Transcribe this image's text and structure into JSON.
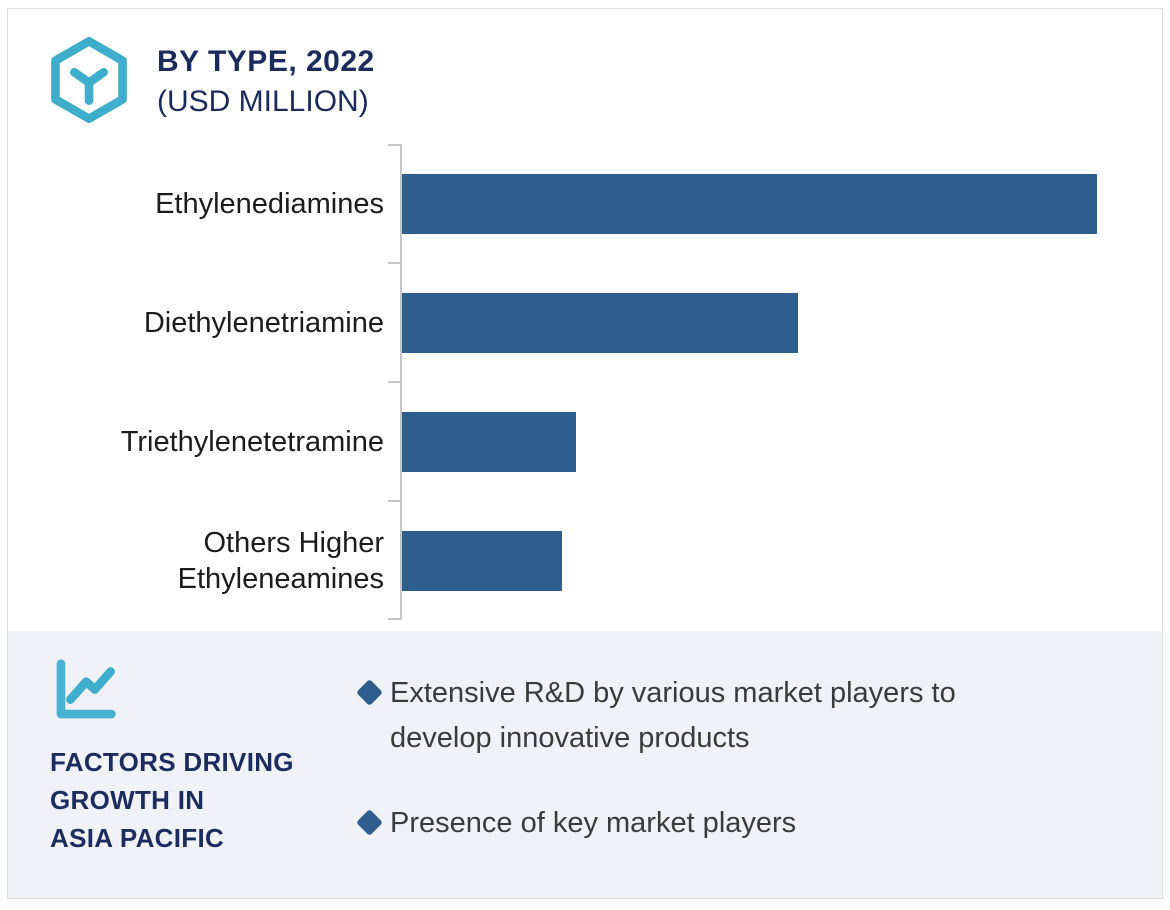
{
  "header": {
    "title": "BY TYPE, 2022",
    "subtitle": "(USD MILLION)"
  },
  "chart_data": {
    "type": "bar",
    "orientation": "horizontal",
    "title": "BY TYPE, 2022 (USD MILLION)",
    "unit": "USD Million",
    "categories": [
      "Ethylenediamines",
      "Diethylenetriamine",
      "Triethylenetetramine",
      "Others Higher Ethyleneamines"
    ],
    "values_pct_of_max": [
      100,
      57,
      25,
      23
    ],
    "value_labels_shown": false,
    "value_axis_shown": false,
    "grid": false,
    "legend": false,
    "bar_color": "#2d5e8e",
    "axis_color": "#c6c6c6"
  },
  "factors": {
    "heading_lines": [
      "FACTORS DRIVING",
      "GROWTH IN",
      "ASIA PACIFIC"
    ],
    "bullets": [
      "Extensive R&D by various market players to develop innovative products",
      "Presence of key market players"
    ]
  },
  "icons": {
    "header_icon": "cube-hexagon-icon",
    "panel_icon": "line-chart-icon",
    "bullet_icon": "diamond-icon"
  },
  "colors": {
    "navy_heading": "#1a2b5c",
    "teal_icon": "#3fadcc",
    "steel_blue": "#2d5e8e",
    "panel_background": "#f0f2f7",
    "category_label_text": "#1c1c1c",
    "bullet_text": "#3b3b3b",
    "card_border": "#dcdde0"
  }
}
